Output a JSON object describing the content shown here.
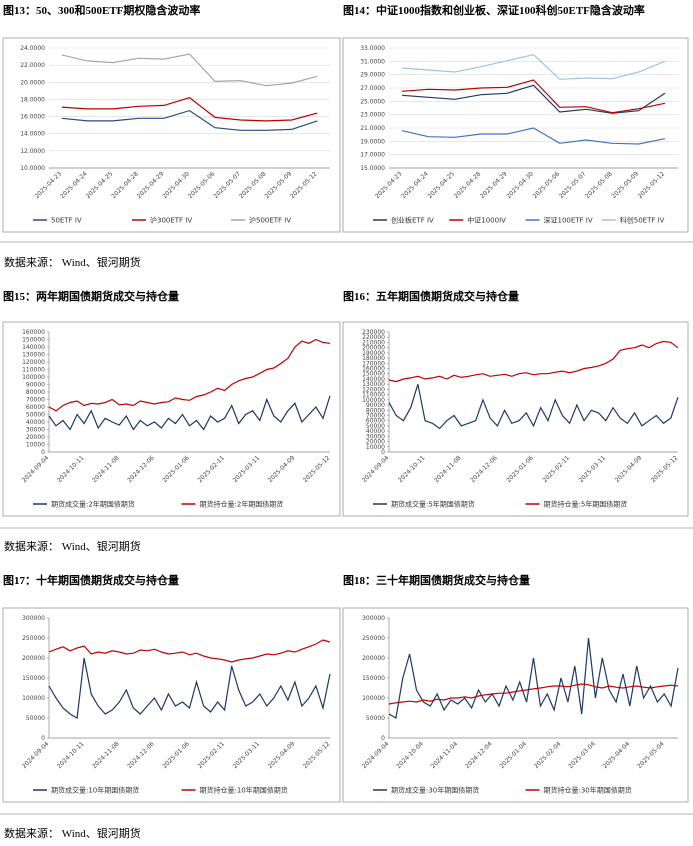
{
  "chart_data": [
    {
      "type": "line",
      "title": "图13：50、300和500ETF期权隐含波动率",
      "grid": true,
      "categories": [
        "2025-04-23",
        "2025-04-24",
        "2025-04-25",
        "2025-04-28",
        "2025-04-29",
        "2025-04-30",
        "2025-05-06",
        "2025-05-07",
        "2025-05-08",
        "2025-05-09",
        "2025-05-12"
      ],
      "ylim": [
        10,
        24
      ],
      "yticks": [
        {
          "value": 10,
          "label": "10.0000"
        },
        {
          "value": 12,
          "label": "12.0000"
        },
        {
          "value": 14,
          "label": "14.0000"
        },
        {
          "value": 16,
          "label": "16.0000"
        },
        {
          "value": 18,
          "label": "18.0000"
        },
        {
          "value": 20,
          "label": "20.0000"
        },
        {
          "value": 22,
          "label": "22.0000"
        },
        {
          "value": 24,
          "label": "24.0000"
        }
      ],
      "series": [
        {
          "name": "50ETF IV",
          "color": "#2e4a7a",
          "values": [
            15.8,
            15.5,
            15.5,
            15.8,
            15.8,
            16.7,
            14.7,
            14.4,
            14.4,
            14.5,
            15.5
          ]
        },
        {
          "name": "沪300ETF IV",
          "color": "#c00000",
          "values": [
            17.1,
            16.9,
            16.9,
            17.2,
            17.3,
            18.2,
            15.9,
            15.6,
            15.5,
            15.6,
            16.4
          ]
        },
        {
          "name": "沪500ETF IV",
          "color": "#a6a6a6",
          "values": [
            23.2,
            22.5,
            22.3,
            22.8,
            22.7,
            23.3,
            20.1,
            20.2,
            19.6,
            19.9,
            20.7
          ]
        }
      ]
    },
    {
      "type": "line",
      "title": "图14：中证1000指数和创业板、深证100科创50ETF隐含波动率",
      "grid": true,
      "categories": [
        "2025-04-23",
        "2025-04-24",
        "2025-04-25",
        "2025-04-28",
        "2025-04-29",
        "2025-04-30",
        "2025-05-06",
        "2025-05-07",
        "2025-05-08",
        "2025-05-09",
        "2025-05-12"
      ],
      "ylim": [
        15,
        33
      ],
      "yticks": [
        {
          "value": 15,
          "label": "15.0000"
        },
        {
          "value": 17,
          "label": "17.0000"
        },
        {
          "value": 19,
          "label": "19.0000"
        },
        {
          "value": 21,
          "label": "21.0000"
        },
        {
          "value": 23,
          "label": "23.0000"
        },
        {
          "value": 25,
          "label": "25.0000"
        },
        {
          "value": 27,
          "label": "27.0000"
        },
        {
          "value": 29,
          "label": "29.0000"
        },
        {
          "value": 31,
          "label": "31.0000"
        },
        {
          "value": 33,
          "label": "33.0000"
        }
      ],
      "series": [
        {
          "name": "创业板ETF IV",
          "color": "#1f3864",
          "values": [
            25.9,
            25.6,
            25.3,
            26.0,
            26.2,
            27.4,
            23.4,
            23.8,
            23.2,
            23.6,
            26.2
          ]
        },
        {
          "name": "中证1000IV",
          "color": "#c00000",
          "values": [
            26.5,
            26.8,
            26.7,
            27.0,
            27.1,
            28.2,
            24.1,
            24.2,
            23.3,
            23.9,
            24.7
          ]
        },
        {
          "name": "深证100ETF IV",
          "color": "#4472c4",
          "values": [
            20.6,
            19.7,
            19.6,
            20.1,
            20.1,
            21.0,
            18.7,
            19.2,
            18.7,
            18.6,
            19.4
          ]
        },
        {
          "name": "科创50ETF IV",
          "color": "#9dc3e6",
          "values": [
            30.0,
            29.7,
            29.4,
            30.2,
            31.1,
            32.0,
            28.3,
            28.5,
            28.4,
            29.4,
            31.0
          ]
        }
      ]
    },
    {
      "type": "line",
      "title": "图15：两年期国债期货成交与持仓量",
      "grid": false,
      "categories": [
        "2024-09-04",
        null,
        null,
        null,
        null,
        "2024-10-11",
        null,
        null,
        null,
        null,
        "2024-11-08",
        null,
        null,
        null,
        null,
        "2024-12-06",
        null,
        null,
        null,
        null,
        "2025-01-06",
        null,
        null,
        null,
        null,
        "2025-02-11",
        null,
        null,
        null,
        null,
        "2025-03-11",
        null,
        null,
        null,
        null,
        "2025-04-09",
        null,
        null,
        null,
        null,
        "2025-05-12"
      ],
      "ylim": [
        0,
        160000
      ],
      "yticks": [
        0,
        10000,
        20000,
        30000,
        40000,
        50000,
        60000,
        70000,
        80000,
        90000,
        100000,
        110000,
        120000,
        130000,
        140000,
        150000,
        160000
      ],
      "series": [
        {
          "name": "期货成交量:2年期国债期货",
          "color": "#1f3864",
          "values": [
            48000,
            35000,
            42000,
            30000,
            50000,
            38000,
            55000,
            32000,
            45000,
            40000,
            36000,
            48000,
            30000,
            42000,
            35000,
            40000,
            32000,
            45000,
            38000,
            50000,
            35000,
            42000,
            30000,
            48000,
            40000,
            45000,
            62000,
            38000,
            50000,
            55000,
            42000,
            70000,
            48000,
            40000,
            55000,
            65000,
            40000,
            50000,
            60000,
            45000,
            75000
          ]
        },
        {
          "name": "期货持仓量:2年期国债期货",
          "color": "#c00000",
          "values": [
            60000,
            55000,
            62000,
            66000,
            68000,
            62000,
            65000,
            64000,
            66000,
            70000,
            63000,
            64000,
            62000,
            68000,
            66000,
            64000,
            66000,
            67000,
            72000,
            70000,
            69000,
            74000,
            76000,
            80000,
            85000,
            82000,
            90000,
            95000,
            98000,
            100000,
            105000,
            110000,
            112000,
            118000,
            125000,
            140000,
            148000,
            145000,
            150000,
            146000,
            145000
          ]
        }
      ]
    },
    {
      "type": "line",
      "title": "图16：五年期国债期货成交与持仓量",
      "grid": false,
      "categories": [
        "2024-09-04",
        null,
        null,
        null,
        null,
        "2024-10-11",
        null,
        null,
        null,
        null,
        "2024-11-08",
        null,
        null,
        null,
        null,
        "2024-12-06",
        null,
        null,
        null,
        null,
        "2025-01-06",
        null,
        null,
        null,
        null,
        "2025-02-11",
        null,
        null,
        null,
        null,
        "2025-03-11",
        null,
        null,
        null,
        null,
        "2025-04-09",
        null,
        null,
        null,
        null,
        "2025-05-12"
      ],
      "ylim": [
        0,
        230000
      ],
      "yticks": [
        0,
        10000,
        20000,
        30000,
        40000,
        50000,
        60000,
        70000,
        80000,
        90000,
        100000,
        110000,
        120000,
        130000,
        140000,
        150000,
        160000,
        170000,
        180000,
        190000,
        200000,
        210000,
        220000,
        230000
      ],
      "series": [
        {
          "name": "期货成交量:5年期国债期货",
          "color": "#1f3864",
          "values": [
            95000,
            70000,
            60000,
            85000,
            130000,
            60000,
            55000,
            45000,
            60000,
            70000,
            50000,
            55000,
            60000,
            100000,
            65000,
            50000,
            80000,
            55000,
            60000,
            75000,
            50000,
            85000,
            60000,
            100000,
            70000,
            55000,
            90000,
            60000,
            80000,
            75000,
            60000,
            85000,
            65000,
            55000,
            75000,
            50000,
            60000,
            70000,
            55000,
            65000,
            105000
          ]
        },
        {
          "name": "期货持仓量:5年期国债期货",
          "color": "#c00000",
          "values": [
            138000,
            135000,
            140000,
            142000,
            145000,
            140000,
            142000,
            145000,
            140000,
            147000,
            143000,
            145000,
            148000,
            150000,
            145000,
            147000,
            149000,
            145000,
            150000,
            152000,
            148000,
            150000,
            150000,
            153000,
            155000,
            152000,
            155000,
            160000,
            162000,
            165000,
            170000,
            178000,
            195000,
            198000,
            200000,
            205000,
            200000,
            208000,
            212000,
            210000,
            200000
          ]
        }
      ]
    },
    {
      "type": "line",
      "title": "图17：十年期国债期货成交与持仓量",
      "grid": false,
      "categories": [
        "2024-09-04",
        null,
        null,
        null,
        null,
        "2024-10-11",
        null,
        null,
        null,
        null,
        "2024-11-08",
        null,
        null,
        null,
        null,
        "2024-12-06",
        null,
        null,
        null,
        null,
        "2025-01-06",
        null,
        null,
        null,
        null,
        "2025-02-11",
        null,
        null,
        null,
        null,
        "2025-03-11",
        null,
        null,
        null,
        null,
        "2025-04-09",
        null,
        null,
        null,
        null,
        "2025-05-12"
      ],
      "ylim": [
        0,
        300000
      ],
      "yticks": [
        0,
        50000,
        100000,
        150000,
        200000,
        250000,
        300000
      ],
      "series": [
        {
          "name": "期货成交量:10年期国债期货",
          "color": "#1f3864",
          "values": [
            130000,
            100000,
            75000,
            60000,
            50000,
            200000,
            110000,
            80000,
            60000,
            70000,
            90000,
            120000,
            75000,
            60000,
            80000,
            100000,
            70000,
            110000,
            80000,
            90000,
            75000,
            140000,
            80000,
            65000,
            90000,
            70000,
            180000,
            120000,
            80000,
            90000,
            110000,
            80000,
            100000,
            130000,
            95000,
            140000,
            80000,
            100000,
            130000,
            75000,
            160000
          ]
        },
        {
          "name": "期货持仓量:10年期国债期货",
          "color": "#c00000",
          "values": [
            215000,
            222000,
            228000,
            218000,
            225000,
            230000,
            210000,
            215000,
            212000,
            218000,
            215000,
            210000,
            212000,
            220000,
            218000,
            222000,
            215000,
            210000,
            212000,
            215000,
            208000,
            212000,
            205000,
            200000,
            198000,
            195000,
            190000,
            195000,
            198000,
            200000,
            205000,
            210000,
            208000,
            212000,
            218000,
            215000,
            222000,
            228000,
            235000,
            245000,
            240000
          ]
        }
      ]
    },
    {
      "type": "line",
      "title": "图18：三十年期国债期货成交与持仓量",
      "grid": false,
      "categories": [
        "2024-09-04",
        null,
        null,
        null,
        null,
        "2024-10-04",
        null,
        null,
        null,
        null,
        "2024-11-04",
        null,
        null,
        null,
        null,
        "2024-12-04",
        null,
        null,
        null,
        null,
        "2025-01-04",
        null,
        null,
        null,
        null,
        "2025-02-04",
        null,
        null,
        null,
        null,
        "2025-03-04",
        null,
        null,
        null,
        null,
        "2025-04-04",
        null,
        null,
        null,
        null,
        "2025-05-04",
        null,
        null
      ],
      "ylim": [
        0,
        300000
      ],
      "yticks": [
        0,
        50000,
        100000,
        150000,
        200000,
        250000,
        300000
      ],
      "series": [
        {
          "name": "期货成交量:30年期国债期货",
          "color": "#1f3864",
          "values": [
            60000,
            50000,
            150000,
            210000,
            120000,
            90000,
            80000,
            110000,
            70000,
            95000,
            85000,
            100000,
            75000,
            120000,
            90000,
            110000,
            80000,
            130000,
            95000,
            140000,
            90000,
            200000,
            80000,
            110000,
            70000,
            150000,
            90000,
            180000,
            60000,
            250000,
            100000,
            200000,
            120000,
            90000,
            160000,
            80000,
            180000,
            100000,
            130000,
            90000,
            110000,
            80000,
            175000
          ]
        },
        {
          "name": "期货持仓量:30年期国债期货",
          "color": "#c00000",
          "values": [
            85000,
            88000,
            90000,
            92000,
            90000,
            95000,
            92000,
            97000,
            95000,
            100000,
            100000,
            103000,
            100000,
            105000,
            108000,
            110000,
            112000,
            112000,
            115000,
            118000,
            120000,
            123000,
            125000,
            128000,
            130000,
            130000,
            128000,
            132000,
            135000,
            133000,
            128000,
            125000,
            130000,
            127000,
            125000,
            128000,
            130000,
            127000,
            125000,
            128000,
            130000,
            132000,
            130000
          ]
        }
      ]
    }
  ],
  "sources": [
    "数据来源： Wind、银河期货",
    "数据来源： Wind、银河期货",
    "数据来源： Wind、银河期货"
  ]
}
